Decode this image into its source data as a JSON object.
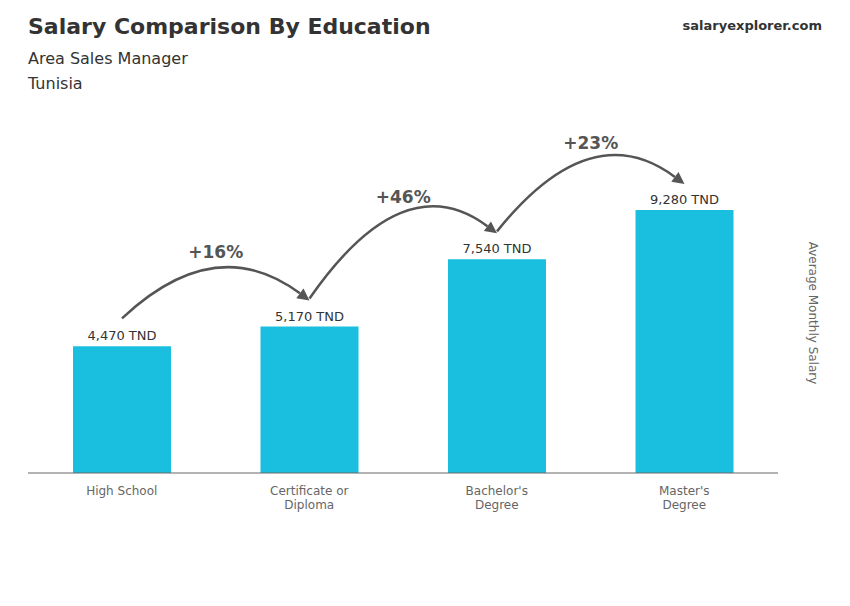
{
  "chart_data": {
    "type": "bar",
    "title": "Salary Comparison By Education",
    "subtitle": "Area Sales Manager",
    "country": "Tunisia",
    "source": "salaryexplorer.com",
    "ylabel": "Average Monthly Salary",
    "categories": [
      "High School",
      "Certificate or\nDiploma",
      "Bachelor's\nDegree",
      "Master's\nDegree"
    ],
    "values": [
      4470,
      5170,
      7540,
      9280
    ],
    "value_labels": [
      "4,470 TND",
      "5,170 TND",
      "7,540 TND",
      "9,280 TND"
    ],
    "data_labels": true,
    "color": "#1ABFDF",
    "ylim": [
      0,
      12000
    ],
    "tick_labels": "x",
    "annotations": [
      {
        "text": "+16%",
        "from": "High School",
        "to": "Certificate or\nDiploma"
      },
      {
        "text": "+46%",
        "from": "Certificate or\nDiploma",
        "to": "Bachelor's\nDegree"
      },
      {
        "text": "+23%",
        "from": "Bachelor's\nDegree",
        "to": "Master's\nDegree"
      }
    ]
  }
}
